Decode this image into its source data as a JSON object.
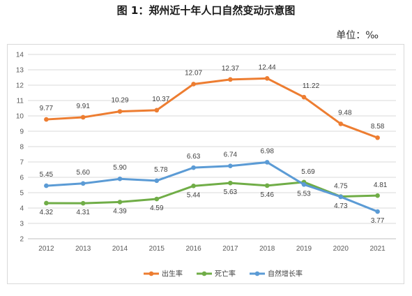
{
  "title": "图 1：郑州近十年人口自然变动示意图",
  "unit_label": "单位：‰",
  "chart_data": {
    "type": "line",
    "categories": [
      "2012",
      "2013",
      "2014",
      "2015",
      "2016",
      "2017",
      "2018",
      "2019",
      "2020",
      "2021"
    ],
    "series": [
      {
        "name": "出生率",
        "color": "#ED7D31",
        "values": [
          9.77,
          9.91,
          10.29,
          10.37,
          12.07,
          12.37,
          12.44,
          11.22,
          9.48,
          8.58
        ],
        "labels": [
          "9.77",
          "9.91",
          "10.29",
          "10.37",
          "12.07",
          "12.37",
          "12.44",
          "11.22",
          "9.48",
          "8.58"
        ]
      },
      {
        "name": "死亡率",
        "color": "#70AD47",
        "values": [
          4.32,
          4.31,
          4.39,
          4.59,
          5.44,
          5.63,
          5.46,
          5.69,
          4.75,
          4.81
        ],
        "labels": [
          "4.32",
          "4.31",
          "4.39",
          "4.59",
          "5.44",
          "5.63",
          "5.46",
          "5.69",
          "4.75",
          "4.81"
        ]
      },
      {
        "name": "自然增长率",
        "color": "#5B9BD5",
        "values": [
          5.45,
          5.6,
          5.9,
          5.78,
          6.63,
          6.74,
          6.98,
          5.53,
          4.73,
          3.77
        ],
        "labels": [
          "5.45",
          "5.60",
          "5.90",
          "5.78",
          "6.63",
          "6.74",
          "6.98",
          "5.53",
          "4.73",
          "3.77"
        ]
      }
    ],
    "ylim": [
      2,
      14
    ],
    "yticks": [
      "2",
      "3",
      "4",
      "5",
      "6",
      "7",
      "8",
      "9",
      "10",
      "11",
      "12",
      "13",
      "14"
    ],
    "grid": true,
    "legend_position": "bottom"
  }
}
